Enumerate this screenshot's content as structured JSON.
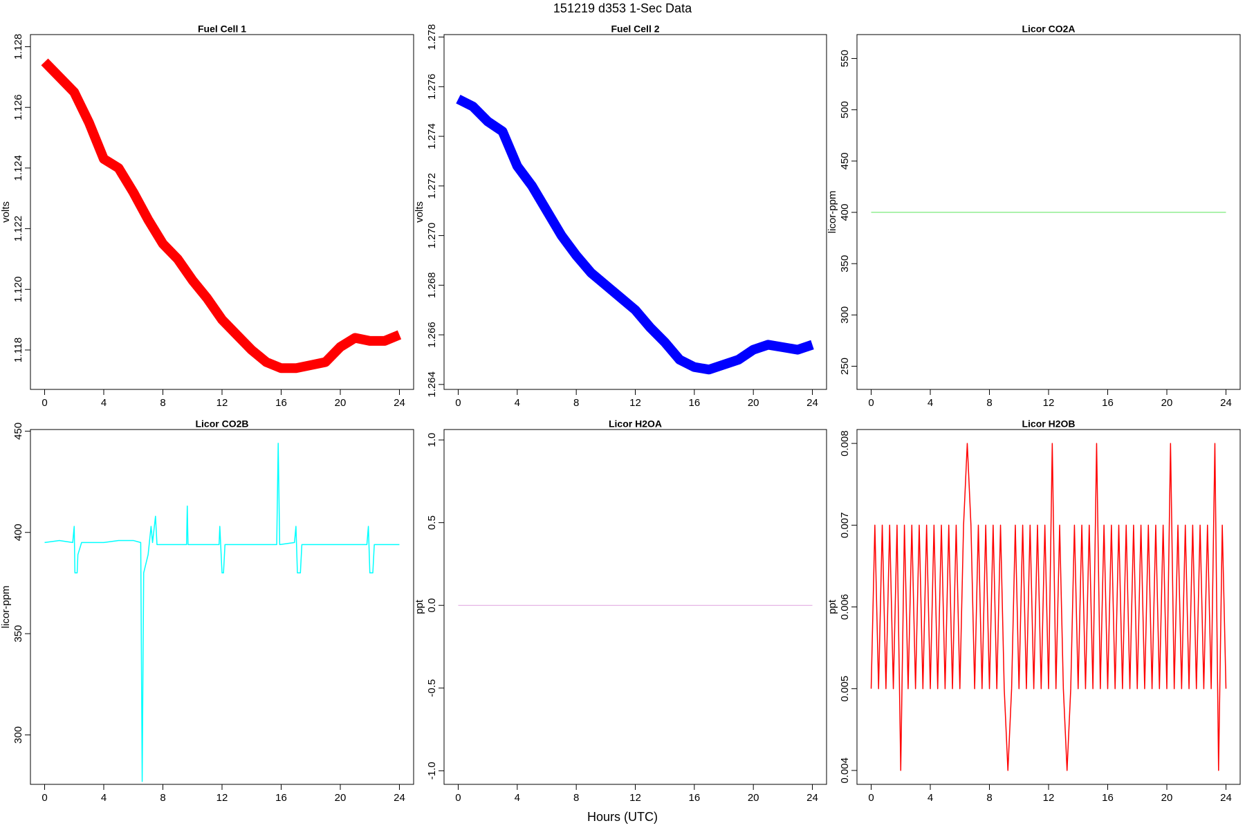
{
  "page": {
    "title": "151219   d353   1-Sec Data",
    "xlabel": "Hours (UTC)"
  },
  "chart_data": [
    {
      "type": "line",
      "title": "Fuel Cell 1",
      "ylabel": "volts",
      "color": "#ff0000",
      "x": [
        0,
        1,
        2,
        3,
        4,
        5,
        6,
        7,
        8,
        9,
        10,
        11,
        12,
        13,
        14,
        15,
        16,
        17,
        18,
        19,
        20,
        21,
        22,
        23,
        24
      ],
      "values": [
        1.1275,
        1.127,
        1.1265,
        1.1255,
        1.1243,
        1.124,
        1.1232,
        1.1223,
        1.1215,
        1.121,
        1.1203,
        1.1197,
        1.119,
        1.1185,
        1.118,
        1.1176,
        1.1174,
        1.1174,
        1.1175,
        1.1176,
        1.1181,
        1.1184,
        1.1183,
        1.1183,
        1.1185
      ],
      "xlim": [
        -0.96,
        24.96
      ],
      "ylim": [
        1.1167,
        1.1284
      ],
      "xticks": [
        0,
        4,
        8,
        12,
        16,
        20,
        24
      ],
      "yticks": [
        1.118,
        {
          "value": 1.12,
          "label": "1.120"
        },
        1.122,
        1.124,
        1.126,
        1.128
      ]
    },
    {
      "type": "line",
      "title": "Fuel Cell 2",
      "ylabel": "volts",
      "color": "#0000ff",
      "x": [
        0,
        1,
        2,
        3,
        4,
        5,
        6,
        7,
        8,
        9,
        10,
        11,
        12,
        13,
        14,
        15,
        16,
        17,
        18,
        19,
        20,
        21,
        22,
        23,
        24
      ],
      "values": [
        1.2755,
        1.2752,
        1.2746,
        1.2742,
        1.2728,
        1.272,
        1.271,
        1.27,
        1.2692,
        1.2685,
        1.268,
        1.2675,
        1.267,
        1.2663,
        1.2657,
        1.265,
        1.2647,
        1.2646,
        1.2648,
        1.265,
        1.2654,
        1.2656,
        1.2655,
        1.2654,
        1.2656
      ],
      "xlim": [
        -0.96,
        24.96
      ],
      "ylim": [
        1.2638,
        1.2781
      ],
      "xticks": [
        0,
        4,
        8,
        12,
        16,
        20,
        24
      ],
      "yticks": [
        1.264,
        1.266,
        1.268,
        {
          "value": 1.27,
          "label": "1.270"
        },
        1.272,
        1.274,
        1.276,
        1.278
      ]
    },
    {
      "type": "line",
      "title": "Licor CO2A",
      "ylabel": "licor-ppm",
      "color": "#90ee90",
      "x": [
        0,
        24
      ],
      "values": [
        400,
        400
      ],
      "xlim": [
        -0.96,
        24.96
      ],
      "ylim": [
        227.4,
        573.3
      ],
      "xticks": [
        0,
        4,
        8,
        12,
        16,
        20,
        24
      ],
      "yticks": [
        250,
        300,
        350,
        400,
        450,
        500,
        550
      ]
    },
    {
      "type": "line",
      "title": "Licor CO2B",
      "ylabel": "licor-ppm",
      "color": "#00ffff",
      "x": [
        0,
        1,
        1.9,
        2,
        2.05,
        2.2,
        2.25,
        2.5,
        4,
        5,
        6,
        6.5,
        6.6,
        6.7,
        7,
        7.2,
        7.3,
        7.5,
        7.6,
        9.6,
        9.65,
        9.7,
        11.8,
        11.85,
        12,
        12.1,
        12.2,
        15.7,
        15.8,
        15.9,
        16.9,
        17,
        17.1,
        17.3,
        17.4,
        21.8,
        21.9,
        22,
        22.2,
        22.3,
        24
      ],
      "values": [
        395,
        396,
        395,
        403,
        380,
        380,
        389,
        395,
        395,
        396,
        396,
        395,
        277,
        380,
        389,
        403,
        395,
        408,
        394,
        394,
        413,
        394,
        394,
        403,
        380,
        380,
        394,
        394,
        444,
        394,
        395,
        403,
        380,
        380,
        394,
        394,
        403,
        380,
        380,
        394,
        394
      ],
      "xlim": [
        -0.96,
        24.96
      ],
      "ylim": [
        275.6,
        450.8
      ],
      "xticks": [
        0,
        4,
        8,
        12,
        16,
        20,
        24
      ],
      "yticks": [
        300,
        350,
        400,
        450
      ]
    },
    {
      "type": "line",
      "title": "Licor H2OA",
      "ylabel": "ppt",
      "color": "#dda0dd",
      "x": [
        0,
        24
      ],
      "values": [
        0,
        0
      ],
      "xlim": [
        -0.96,
        24.96
      ],
      "ylim": [
        -1.082,
        1.063
      ],
      "xticks": [
        0,
        4,
        8,
        12,
        16,
        20,
        24
      ],
      "yticks": [
        {
          "value": -1,
          "label": "-1.0"
        },
        -0.5,
        {
          "value": 0,
          "label": "0.0"
        },
        0.5,
        {
          "value": 1,
          "label": "1.0"
        }
      ]
    },
    {
      "type": "line",
      "title": "Licor H2OB",
      "ylabel": "ppt",
      "color": "#ff0000",
      "x": [
        0,
        0.25,
        0.5,
        0.75,
        1,
        1.25,
        1.5,
        1.75,
        2,
        2.25,
        2.5,
        2.75,
        3,
        3.25,
        3.5,
        3.75,
        4,
        4.25,
        4.5,
        4.75,
        5,
        5.25,
        5.5,
        5.75,
        6,
        6.25,
        6.5,
        6.75,
        7,
        7.25,
        7.5,
        7.75,
        8,
        8.25,
        8.5,
        8.75,
        9,
        9.25,
        9.5,
        9.75,
        10,
        10.25,
        10.5,
        10.75,
        11,
        11.25,
        11.5,
        11.75,
        12,
        12.25,
        12.5,
        12.75,
        13,
        13.25,
        13.5,
        13.75,
        14,
        14.25,
        14.5,
        14.75,
        15,
        15.25,
        15.5,
        15.75,
        16,
        16.25,
        16.5,
        16.75,
        17,
        17.25,
        17.5,
        17.75,
        18,
        18.25,
        18.5,
        18.75,
        19,
        19.25,
        19.5,
        19.75,
        20,
        20.25,
        20.5,
        20.75,
        21,
        21.25,
        21.5,
        21.75,
        22,
        22.25,
        22.5,
        22.75,
        23,
        23.25,
        23.5,
        23.75,
        24
      ],
      "values": [
        0.005,
        0.007,
        0.005,
        0.007,
        0.005,
        0.007,
        0.005,
        0.007,
        0.004,
        0.007,
        0.005,
        0.007,
        0.005,
        0.007,
        0.005,
        0.007,
        0.005,
        0.007,
        0.005,
        0.007,
        0.005,
        0.007,
        0.005,
        0.007,
        0.005,
        0.007,
        0.008,
        0.007,
        0.005,
        0.007,
        0.005,
        0.007,
        0.005,
        0.007,
        0.005,
        0.007,
        0.005,
        0.004,
        0.005,
        0.007,
        0.005,
        0.007,
        0.005,
        0.007,
        0.005,
        0.007,
        0.005,
        0.007,
        0.005,
        0.008,
        0.005,
        0.007,
        0.005,
        0.004,
        0.005,
        0.007,
        0.005,
        0.007,
        0.005,
        0.007,
        0.005,
        0.008,
        0.005,
        0.007,
        0.005,
        0.007,
        0.005,
        0.007,
        0.005,
        0.007,
        0.005,
        0.007,
        0.005,
        0.007,
        0.005,
        0.007,
        0.005,
        0.007,
        0.005,
        0.007,
        0.005,
        0.008,
        0.005,
        0.007,
        0.005,
        0.007,
        0.005,
        0.007,
        0.005,
        0.007,
        0.005,
        0.007,
        0.005,
        0.008,
        0.004,
        0.007,
        0.005
      ],
      "xlim": [
        -0.96,
        24.96
      ],
      "ylim": [
        0.00383,
        0.00817
      ],
      "xticks": [
        0,
        4,
        8,
        12,
        16,
        20,
        24
      ],
      "yticks": [
        0.004,
        0.005,
        0.006,
        0.007,
        0.008
      ]
    }
  ]
}
